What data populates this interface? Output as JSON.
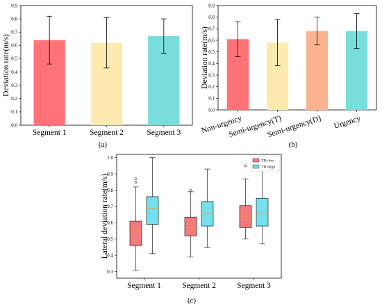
{
  "chart_data": [
    {
      "type": "bar",
      "panel_label": "(a)",
      "ylabel": "Deviation rate(m/s)",
      "ylim": [
        0,
        0.9
      ],
      "yticks": [
        "0.0",
        "0.1",
        "0.2",
        "0.3",
        "0.4",
        "0.5",
        "0.6",
        "0.7",
        "0.8",
        "0.9"
      ],
      "categories": [
        "Segment 1",
        "Segment 2",
        "Segment 3"
      ],
      "values": [
        0.64,
        0.62,
        0.67
      ],
      "err_low": [
        0.46,
        0.43,
        0.54
      ],
      "err_high": [
        0.82,
        0.81,
        0.8
      ],
      "colors": [
        "#ff7378",
        "#fdeaae",
        "#78dedc"
      ]
    },
    {
      "type": "bar",
      "panel_label": "(b)",
      "ylabel": "Deviation rate(m/s)",
      "ylim": [
        0,
        0.9
      ],
      "yticks": [
        "0.0",
        "0.1",
        "0.2",
        "0.3",
        "0.4",
        "0.5",
        "0.6",
        "0.7",
        "0.8",
        "0.9"
      ],
      "categories": [
        "Non-urgency",
        "Semi-urgency(T)",
        "Semi-urgency(D)",
        "Urgency"
      ],
      "values": [
        0.61,
        0.58,
        0.68,
        0.68
      ],
      "err_low": [
        0.46,
        0.38,
        0.56,
        0.53
      ],
      "err_high": [
        0.76,
        0.78,
        0.8,
        0.83
      ],
      "colors": [
        "#ff7378",
        "#fdeaae",
        "#fcb28e",
        "#78dedc"
      ]
    },
    {
      "type": "box",
      "panel_label": "(c)",
      "ylabel": "Lateral deviation rate(m/s)",
      "ylim": [
        0.3,
        1.0
      ],
      "yticks": [
        "0.3",
        "0.4",
        "0.5",
        "0.6",
        "0.7",
        "0.8",
        "0.9",
        "1.0"
      ],
      "categories": [
        "Segment 1",
        "Segment 2",
        "Segment 3"
      ],
      "series": [
        {
          "name": "TD=low",
          "color": "#f47a7e",
          "boxes": [
            {
              "min": 0.31,
              "q1": 0.46,
              "median": 0.55,
              "q3": 0.61,
              "max": 0.82,
              "outliers": [
                0.85,
                0.87
              ]
            },
            {
              "min": 0.39,
              "q1": 0.52,
              "median": 0.57,
              "q3": 0.635,
              "max": 0.79,
              "outliers": [
                0.8
              ]
            },
            {
              "min": 0.5,
              "q1": 0.57,
              "median": 0.64,
              "q3": 0.705,
              "max": 0.87,
              "outliers": [
                0.95
              ]
            }
          ]
        },
        {
          "name": "TD=high",
          "color": "#74e0ee",
          "boxes": [
            {
              "min": 0.41,
              "q1": 0.59,
              "median": 0.69,
              "q3": 0.76,
              "max": 1.0,
              "outliers": []
            },
            {
              "min": 0.45,
              "q1": 0.58,
              "median": 0.66,
              "q3": 0.73,
              "max": 0.93,
              "outliers": []
            },
            {
              "min": 0.47,
              "q1": 0.58,
              "median": 0.66,
              "q3": 0.75,
              "max": 0.93,
              "outliers": []
            }
          ]
        }
      ],
      "median_color": "#f0a030",
      "legend_position": "top-right"
    }
  ]
}
